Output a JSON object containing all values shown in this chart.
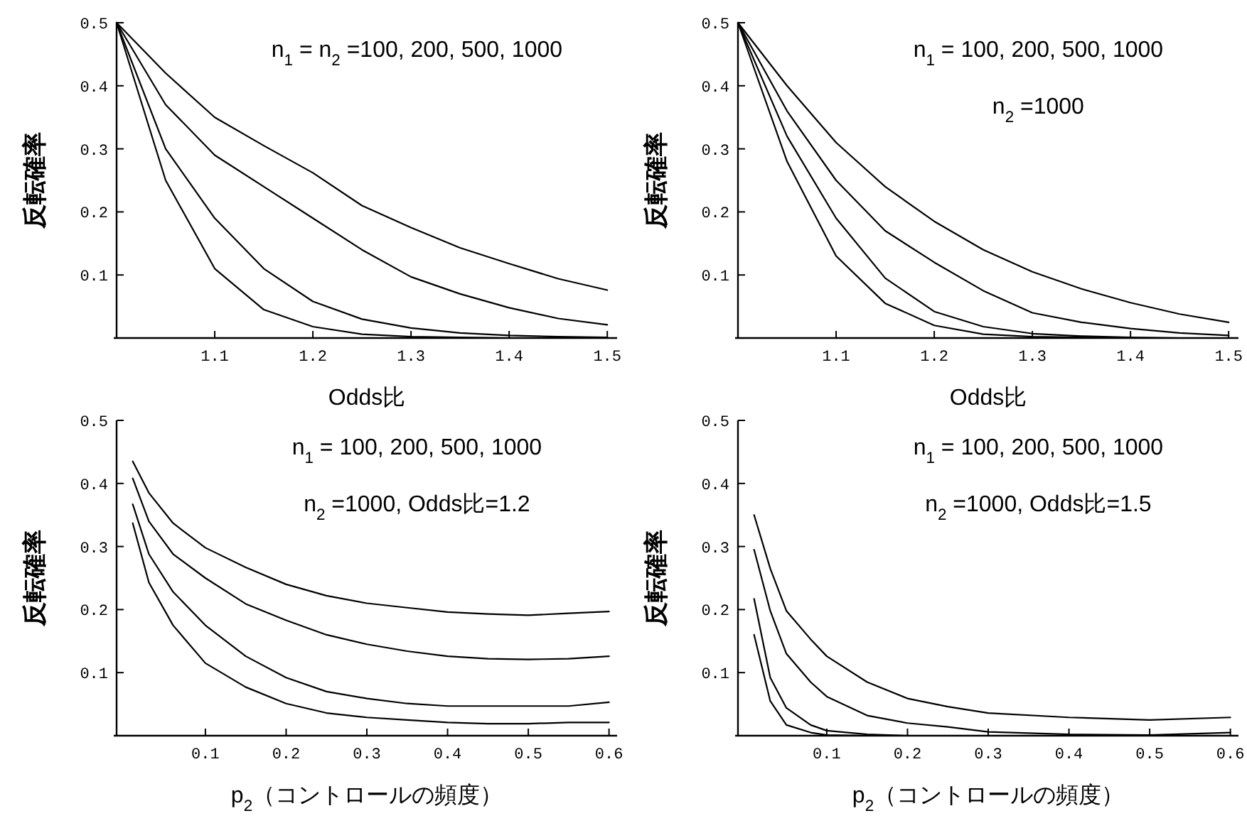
{
  "chart_data": [
    {
      "type": "line",
      "xlabel": "Odds比",
      "ylabel": "反転確率",
      "annotations": [
        "n$_{1}$ = n$_{2}$ =100, 200, 500, 1000"
      ],
      "xlim": [
        1.0,
        1.51
      ],
      "ylim": [
        0,
        0.5
      ],
      "xticks": [
        1.1,
        1.2,
        1.3,
        1.4,
        1.5
      ],
      "yticks": [
        0.1,
        0.2,
        0.3,
        0.4,
        0.5
      ],
      "x": [
        1.0,
        1.05,
        1.1,
        1.15,
        1.2,
        1.25,
        1.3,
        1.35,
        1.4,
        1.45,
        1.5
      ],
      "series": [
        {
          "color": "#000000",
          "values": [
            0.5,
            0.42,
            0.35,
            0.305,
            0.262,
            0.21,
            0.175,
            0.143,
            0.118,
            0.094,
            0.076
          ]
        },
        {
          "color": "#000000",
          "values": [
            0.5,
            0.37,
            0.29,
            0.24,
            0.19,
            0.14,
            0.097,
            0.07,
            0.048,
            0.031,
            0.021
          ]
        },
        {
          "color": "#000000",
          "values": [
            0.5,
            0.3,
            0.19,
            0.11,
            0.058,
            0.03,
            0.016,
            0.008,
            0.004,
            0.002,
            0.001
          ]
        },
        {
          "color": "#000000",
          "values": [
            0.5,
            0.25,
            0.11,
            0.045,
            0.018,
            0.006,
            0.002,
            0.001,
            0,
            null,
            null
          ]
        }
      ]
    },
    {
      "type": "line",
      "xlabel": "Odds比",
      "ylabel": "反転確率",
      "annotations": [
        "n$_{1}$ = 100, 200, 500, 1000",
        "n$_{2}$ =1000"
      ],
      "xlim": [
        1.0,
        1.51
      ],
      "ylim": [
        0,
        0.5
      ],
      "xticks": [
        1.1,
        1.2,
        1.3,
        1.4,
        1.5
      ],
      "yticks": [
        0.1,
        0.2,
        0.3,
        0.4,
        0.5
      ],
      "x": [
        1.0,
        1.05,
        1.1,
        1.15,
        1.2,
        1.25,
        1.3,
        1.35,
        1.4,
        1.45,
        1.5
      ],
      "series": [
        {
          "color": "#000000",
          "values": [
            0.5,
            0.4,
            0.31,
            0.24,
            0.185,
            0.14,
            0.105,
            0.078,
            0.056,
            0.038,
            0.025
          ]
        },
        {
          "color": "#000000",
          "values": [
            0.5,
            0.36,
            0.25,
            0.17,
            0.12,
            0.075,
            0.04,
            0.025,
            0.015,
            0.008,
            0.004
          ]
        },
        {
          "color": "#000000",
          "values": [
            0.5,
            0.32,
            0.19,
            0.095,
            0.042,
            0.018,
            0.007,
            0.003,
            0.001,
            0,
            null
          ]
        },
        {
          "color": "#000000",
          "values": [
            0.5,
            0.28,
            0.13,
            0.055,
            0.02,
            0.006,
            0.002,
            0.001,
            0,
            null,
            null
          ]
        }
      ]
    },
    {
      "type": "line",
      "xlabel": "p$_{2}$（コントロールの頻度）",
      "ylabel": "反転確率",
      "annotations": [
        "n$_{1}$ = 100, 200, 500, 1000",
        "n$_{2}$ =1000, Odds比=1.2"
      ],
      "xlim": [
        -0.01,
        0.61
      ],
      "ylim": [
        0,
        0.5
      ],
      "xticks": [
        0.1,
        0.2,
        0.3,
        0.4,
        0.5,
        0.6
      ],
      "yticks": [
        0.1,
        0.2,
        0.3,
        0.4,
        0.5
      ],
      "x": [
        0.01,
        0.03,
        0.06,
        0.1,
        0.15,
        0.2,
        0.25,
        0.3,
        0.35,
        0.4,
        0.45,
        0.5,
        0.55,
        0.6
      ],
      "series": [
        {
          "color": "#000000",
          "values": [
            0.435,
            0.385,
            0.337,
            0.298,
            0.267,
            0.24,
            0.222,
            0.21,
            0.203,
            0.196,
            0.193,
            0.191,
            0.194,
            0.197
          ]
        },
        {
          "color": "#000000",
          "values": [
            0.408,
            0.34,
            0.288,
            0.25,
            0.209,
            0.183,
            0.16,
            0.145,
            0.134,
            0.126,
            0.122,
            0.121,
            0.122,
            0.126
          ]
        },
        {
          "color": "#000000",
          "values": [
            0.367,
            0.288,
            0.228,
            0.175,
            0.126,
            0.092,
            0.07,
            0.059,
            0.051,
            0.047,
            0.047,
            0.047,
            0.047,
            0.053
          ]
        },
        {
          "color": "#000000",
          "values": [
            0.337,
            0.243,
            0.175,
            0.115,
            0.077,
            0.051,
            0.036,
            0.029,
            0.025,
            0.021,
            0.019,
            0.019,
            0.021,
            0.021
          ]
        }
      ]
    },
    {
      "type": "line",
      "xlabel": "p$_{2}$（コントロールの頻度）",
      "ylabel": "反転確率",
      "annotations": [
        "n$_{1}$ = 100, 200, 500, 1000",
        "n$_{2}$ =1000, Odds比=1.5"
      ],
      "xlim": [
        -0.01,
        0.61
      ],
      "ylim": [
        0,
        0.5
      ],
      "xticks": [
        0.1,
        0.2,
        0.3,
        0.4,
        0.5,
        0.6
      ],
      "yticks": [
        0.1,
        0.2,
        0.3,
        0.4,
        0.5
      ],
      "x": [
        0.01,
        0.03,
        0.05,
        0.08,
        0.1,
        0.15,
        0.2,
        0.25,
        0.3,
        0.4,
        0.5,
        0.6
      ],
      "series": [
        {
          "color": "#000000",
          "values": [
            0.35,
            0.265,
            0.198,
            0.153,
            0.126,
            0.085,
            0.059,
            0.046,
            0.036,
            0.029,
            0.025,
            0.029
          ]
        },
        {
          "color": "#000000",
          "values": [
            0.295,
            0.198,
            0.13,
            0.085,
            0.062,
            0.032,
            0.02,
            0.014,
            0.006,
            0.002,
            0.001,
            0.005
          ]
        },
        {
          "color": "#000000",
          "values": [
            0.217,
            0.092,
            0.044,
            0.017,
            0.008,
            0.002,
            0,
            null,
            null,
            null,
            null,
            null
          ]
        },
        {
          "color": "#000000",
          "values": [
            0.16,
            0.055,
            0.017,
            0.005,
            0.001,
            0,
            null,
            null,
            null,
            null,
            null,
            null
          ]
        }
      ]
    }
  ]
}
